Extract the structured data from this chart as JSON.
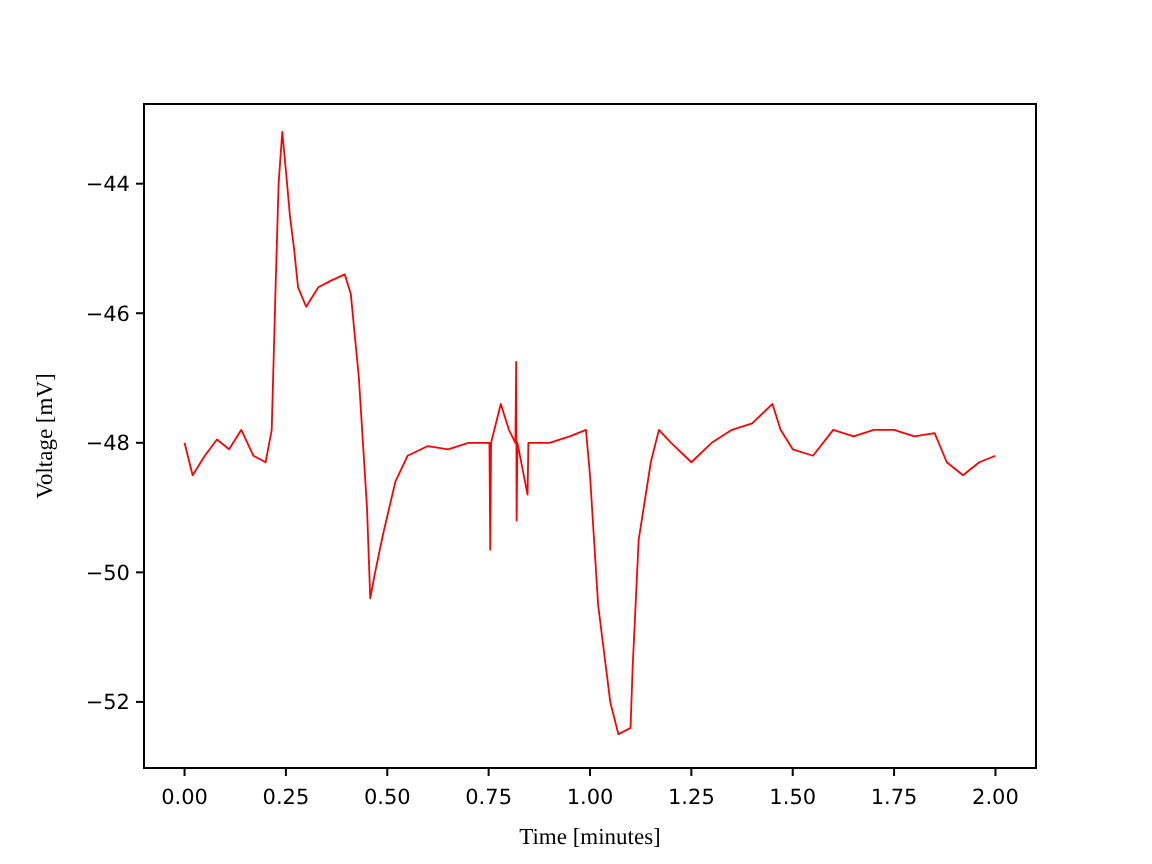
{
  "chart_data": {
    "type": "line",
    "xlabel": "Time [minutes]",
    "ylabel": "Voltage [mV]",
    "xlim": [
      -0.1,
      2.1
    ],
    "ylim": [
      -53.02,
      -42.77
    ],
    "xticks": [
      {
        "value": 0,
        "label": "0.00"
      },
      {
        "value": 0.25,
        "label": "0.25"
      },
      {
        "value": 0.5,
        "label": "0.50"
      },
      {
        "value": 0.75,
        "label": "0.75"
      },
      {
        "value": 1,
        "label": "1.00"
      },
      {
        "value": 1.25,
        "label": "1.25"
      },
      {
        "value": 1.5,
        "label": "1.50"
      },
      {
        "value": 1.75,
        "label": "1.75"
      },
      {
        "value": 2,
        "label": "2.00"
      }
    ],
    "yticks": [
      {
        "value": -52,
        "label": "−52"
      },
      {
        "value": -50,
        "label": "−50"
      },
      {
        "value": -48,
        "label": "−48"
      },
      {
        "value": -46,
        "label": "−46"
      },
      {
        "value": -44,
        "label": "−44"
      }
    ],
    "grid": false,
    "marker": "none",
    "line_style": "solid",
    "series": [
      {
        "color": "#ff0000",
        "x": [
          0,
          0.02,
          0.05,
          0.08,
          0.11,
          0.14,
          0.17,
          0.2,
          0.215,
          0.225,
          0.232,
          0.241,
          0.25,
          0.26,
          0.27,
          0.28,
          0.3,
          0.33,
          0.36,
          0.395,
          0.41,
          0.43,
          0.45,
          0.458,
          0.47,
          0.49,
          0.52,
          0.55,
          0.6,
          0.65,
          0.7,
          0.752,
          0.754,
          0.756,
          0.78,
          0.8,
          0.816,
          0.818,
          0.819,
          0.821,
          0.846,
          0.848,
          0.9,
          0.95,
          0.99,
          1,
          1.02,
          1.05,
          1.07,
          1.1,
          1.105,
          1.12,
          1.15,
          1.17,
          1.2,
          1.25,
          1.3,
          1.35,
          1.4,
          1.45,
          1.47,
          1.5,
          1.55,
          1.6,
          1.65,
          1.7,
          1.75,
          1.8,
          1.85,
          1.88,
          1.92,
          1.96,
          2
        ],
        "values": [
          -48,
          -48.5,
          -48.2,
          -47.95,
          -48.1,
          -47.8,
          -48.2,
          -48.3,
          -47.8,
          -45.5,
          -44,
          -43.2,
          -43.8,
          -44.5,
          -45,
          -45.6,
          -45.9,
          -45.6,
          -45.5,
          -45.4,
          -45.7,
          -47,
          -49,
          -50.4,
          -50,
          -49.4,
          -48.6,
          -48.2,
          -48.05,
          -48.1,
          -48,
          -48,
          -49.65,
          -48,
          -47.4,
          -47.8,
          -48,
          -46.75,
          -49.2,
          -48,
          -48.8,
          -48,
          -48,
          -47.9,
          -47.8,
          -48.5,
          -50.5,
          -52,
          -52.5,
          -52.4,
          -51.5,
          -49.5,
          -48.3,
          -47.8,
          -48,
          -48.3,
          -48,
          -47.8,
          -47.7,
          -47.4,
          -47.8,
          -48.1,
          -48.2,
          -47.8,
          -47.9,
          -47.8,
          -47.8,
          -47.9,
          -47.85,
          -48.3,
          -48.5,
          -48.3,
          -48.2
        ]
      }
    ]
  }
}
